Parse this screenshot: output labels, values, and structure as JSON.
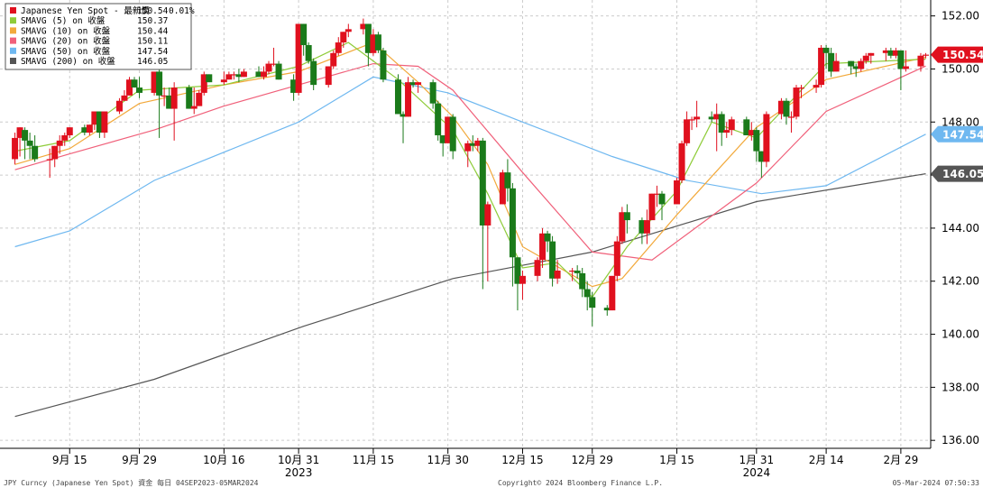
{
  "chart_data": {
    "type": "candlestick",
    "ylim": [
      135.7,
      152.6
    ],
    "yticks": [
      136,
      138,
      140,
      142,
      144,
      146,
      148,
      150,
      152
    ],
    "ytick_labels": [
      "136.00",
      "138.00",
      "140.00",
      "142.00",
      "144.00",
      "146.00",
      "148.00",
      "150.00",
      "152.00"
    ],
    "xticks": [
      {
        "date": "2023-09-15",
        "label": "9月 15"
      },
      {
        "date": "2023-09-29",
        "label": "9月 29"
      },
      {
        "date": "2023-10-16",
        "label": "10月 16"
      },
      {
        "date": "2023-10-31",
        "label": "10月 31",
        "sub": "2023"
      },
      {
        "date": "2023-11-15",
        "label": "11月 15"
      },
      {
        "date": "2023-11-30",
        "label": "11月 30"
      },
      {
        "date": "2023-12-15",
        "label": "12月 15"
      },
      {
        "date": "2023-12-29",
        "label": "12月 29"
      },
      {
        "date": "2024-01-15",
        "label": "1月 15"
      },
      {
        "date": "2024-01-31",
        "label": "1月 31",
        "sub": "2024"
      },
      {
        "date": "2024-02-14",
        "label": "2月 14"
      },
      {
        "date": "2024-02-29",
        "label": "2月 29"
      }
    ],
    "grid": true,
    "legend_position": "top-left",
    "series": [
      {
        "name": "Japanese Yen Spot - 最新價",
        "value": "150.54",
        "change": "0.01%",
        "color": "#e0101e",
        "kind": "candles"
      },
      {
        "name": "SMAVG (5)  on 收盤",
        "value": "150.37",
        "color": "#8fcc3a",
        "kind": "line"
      },
      {
        "name": "SMAVG (10)  on 收盤",
        "value": "150.44",
        "color": "#f2a93b",
        "kind": "line"
      },
      {
        "name": "SMAVG (20)  on 收盤",
        "value": "150.11",
        "color": "#f0607a",
        "kind": "line"
      },
      {
        "name": "SMAVG (50)  on 收盤",
        "value": "147.54",
        "color": "#6fb8f0",
        "kind": "line"
      },
      {
        "name": "SMAVG (200)  on 收盤",
        "value": "146.05",
        "color": "#555555",
        "kind": "line"
      }
    ],
    "candles": [
      [
        "2023-09-04",
        146.6,
        147.6,
        146.4,
        147.4
      ],
      [
        "2023-09-05",
        147.4,
        147.8,
        146.7,
        147.8
      ],
      [
        "2023-09-06",
        147.7,
        147.8,
        146.6,
        147.3
      ],
      [
        "2023-09-07",
        147.3,
        147.6,
        146.6,
        147.1
      ],
      [
        "2023-09-08",
        147.1,
        147.5,
        146.5,
        146.6
      ],
      [
        "2023-09-11",
        146.6,
        147.0,
        145.9,
        146.6
      ],
      [
        "2023-09-12",
        146.6,
        147.1,
        146.3,
        147.1
      ],
      [
        "2023-09-13",
        147.1,
        147.5,
        146.8,
        147.3
      ],
      [
        "2023-09-14",
        147.3,
        147.6,
        147.1,
        147.5
      ],
      [
        "2023-09-15",
        147.5,
        147.8,
        147.4,
        147.8
      ],
      [
        "2023-09-18",
        147.8,
        147.9,
        147.5,
        147.6
      ],
      [
        "2023-09-19",
        147.6,
        147.9,
        147.5,
        147.9
      ],
      [
        "2023-09-20",
        147.9,
        148.4,
        147.7,
        148.4
      ],
      [
        "2023-09-21",
        148.4,
        148.4,
        147.4,
        147.6
      ],
      [
        "2023-09-22",
        147.6,
        148.4,
        147.4,
        148.4
      ],
      [
        "2023-09-25",
        148.4,
        148.9,
        148.3,
        148.8
      ],
      [
        "2023-09-26",
        148.8,
        149.2,
        148.8,
        149.0
      ],
      [
        "2023-09-27",
        149.0,
        149.7,
        149.0,
        149.6
      ],
      [
        "2023-09-28",
        149.6,
        149.7,
        149.3,
        149.3
      ],
      [
        "2023-09-29",
        149.3,
        149.7,
        148.9,
        149.1
      ],
      [
        "2023-10-02",
        149.1,
        149.8,
        149.0,
        149.9
      ],
      [
        "2023-10-03",
        149.9,
        150.2,
        147.4,
        149.0
      ],
      [
        "2023-10-04",
        149.0,
        149.3,
        148.6,
        149.0
      ],
      [
        "2023-10-05",
        149.0,
        149.3,
        148.6,
        148.5
      ],
      [
        "2023-10-06",
        148.5,
        149.5,
        147.3,
        149.3
      ],
      [
        "2023-10-09",
        149.3,
        149.4,
        148.5,
        148.5
      ],
      [
        "2023-10-10",
        148.5,
        149.3,
        148.3,
        148.6
      ],
      [
        "2023-10-11",
        148.6,
        149.2,
        148.7,
        149.1
      ],
      [
        "2023-10-12",
        149.1,
        149.9,
        149.0,
        149.8
      ],
      [
        "2023-10-13",
        149.8,
        149.8,
        149.5,
        149.5
      ],
      [
        "2023-10-16",
        149.5,
        149.9,
        149.4,
        149.6
      ],
      [
        "2023-10-17",
        149.6,
        149.9,
        149.6,
        149.8
      ],
      [
        "2023-10-18",
        149.8,
        149.9,
        149.6,
        149.8
      ],
      [
        "2023-10-19",
        149.8,
        150.0,
        149.5,
        149.7
      ],
      [
        "2023-10-20",
        149.7,
        150.0,
        149.7,
        149.9
      ],
      [
        "2023-10-23",
        149.9,
        150.1,
        149.7,
        149.7
      ],
      [
        "2023-10-24",
        149.7,
        150.1,
        149.6,
        149.9
      ],
      [
        "2023-10-25",
        149.9,
        150.3,
        149.8,
        150.2
      ],
      [
        "2023-10-26",
        150.2,
        150.8,
        150.1,
        150.2
      ],
      [
        "2023-10-27",
        150.2,
        150.3,
        149.6,
        149.6
      ],
      [
        "2023-10-30",
        149.6,
        149.8,
        148.8,
        149.1
      ],
      [
        "2023-10-31",
        149.1,
        151.7,
        149.0,
        151.7
      ],
      [
        "2023-11-01",
        151.7,
        151.7,
        150.5,
        150.9
      ],
      [
        "2023-11-02",
        150.9,
        151.0,
        150.2,
        150.3
      ],
      [
        "2023-11-03",
        150.3,
        150.4,
        149.2,
        149.4
      ],
      [
        "2023-11-06",
        149.4,
        150.1,
        149.3,
        150.1
      ],
      [
        "2023-11-07",
        150.1,
        150.7,
        150.0,
        150.6
      ],
      [
        "2023-11-08",
        150.6,
        151.2,
        150.5,
        151.0
      ],
      [
        "2023-11-09",
        151.0,
        151.4,
        150.8,
        151.4
      ],
      [
        "2023-11-10",
        151.4,
        151.7,
        151.2,
        151.5
      ],
      [
        "2023-11-13",
        151.5,
        151.9,
        151.3,
        151.7
      ],
      [
        "2023-11-14",
        151.7,
        151.7,
        150.1,
        150.6
      ],
      [
        "2023-11-15",
        150.6,
        151.5,
        150.5,
        151.3
      ],
      [
        "2023-11-16",
        151.3,
        151.4,
        150.6,
        150.7
      ],
      [
        "2023-11-17",
        150.7,
        150.8,
        149.5,
        149.6
      ],
      [
        "2023-11-20",
        149.6,
        149.8,
        148.3,
        148.3
      ],
      [
        "2023-11-21",
        148.3,
        148.4,
        147.2,
        148.2
      ],
      [
        "2023-11-22",
        148.2,
        149.7,
        148.2,
        149.5
      ],
      [
        "2023-11-23",
        149.5,
        149.6,
        149.3,
        149.4
      ],
      [
        "2023-11-24",
        149.4,
        149.5,
        149.1,
        149.5
      ],
      [
        "2023-11-27",
        149.5,
        149.6,
        148.5,
        148.7
      ],
      [
        "2023-11-28",
        148.7,
        148.8,
        147.3,
        147.5
      ],
      [
        "2023-11-29",
        147.5,
        147.5,
        146.7,
        147.2
      ],
      [
        "2023-11-30",
        147.2,
        148.2,
        147.2,
        148.2
      ],
      [
        "2023-12-01",
        148.2,
        148.3,
        146.6,
        146.9
      ],
      [
        "2023-12-04",
        146.9,
        147.3,
        146.3,
        147.2
      ],
      [
        "2023-12-05",
        147.2,
        147.5,
        146.9,
        147.1
      ],
      [
        "2023-12-06",
        147.1,
        147.4,
        146.9,
        147.3
      ],
      [
        "2023-12-07",
        147.3,
        147.4,
        141.7,
        144.1
      ],
      [
        "2023-12-08",
        144.1,
        145.0,
        142.0,
        144.9
      ],
      [
        "2023-12-11",
        144.9,
        146.2,
        144.9,
        146.1
      ],
      [
        "2023-12-12",
        146.1,
        146.6,
        145.0,
        145.5
      ],
      [
        "2023-12-13",
        145.5,
        145.7,
        141.8,
        142.9
      ],
      [
        "2023-12-14",
        142.9,
        142.9,
        140.9,
        141.9
      ],
      [
        "2023-12-15",
        141.9,
        142.4,
        141.3,
        142.2
      ],
      [
        "2023-12-18",
        142.2,
        142.9,
        142.0,
        142.8
      ],
      [
        "2023-12-19",
        142.8,
        144.0,
        142.5,
        143.8
      ],
      [
        "2023-12-20",
        143.8,
        143.9,
        143.1,
        143.5
      ],
      [
        "2023-12-21",
        143.5,
        143.7,
        141.8,
        142.1
      ],
      [
        "2023-12-22",
        142.1,
        142.8,
        141.9,
        142.4
      ],
      [
        "2023-12-25",
        142.4,
        142.5,
        142.0,
        142.4
      ],
      [
        "2023-12-26",
        142.4,
        142.6,
        142.1,
        142.3
      ],
      [
        "2023-12-27",
        142.3,
        142.5,
        141.4,
        141.7
      ],
      [
        "2023-12-28",
        141.7,
        142.0,
        140.9,
        141.4
      ],
      [
        "2023-12-29",
        141.4,
        141.6,
        140.3,
        141.0
      ],
      [
        "2024-01-01",
        141.0,
        141.1,
        140.7,
        140.9
      ],
      [
        "2024-01-02",
        140.9,
        142.2,
        140.9,
        142.2
      ],
      [
        "2024-01-03",
        142.2,
        143.7,
        142.0,
        143.5
      ],
      [
        "2024-01-04",
        143.5,
        144.8,
        143.4,
        144.6
      ],
      [
        "2024-01-05",
        144.6,
        144.9,
        143.8,
        144.3
      ],
      [
        "2024-01-08",
        144.3,
        144.4,
        143.4,
        143.8
      ],
      [
        "2024-01-09",
        143.8,
        144.7,
        143.4,
        144.3
      ],
      [
        "2024-01-10",
        144.3,
        145.3,
        144.3,
        145.3
      ],
      [
        "2024-01-11",
        145.3,
        145.6,
        144.8,
        145.3
      ],
      [
        "2024-01-12",
        145.3,
        145.4,
        144.3,
        144.9
      ],
      [
        "2024-01-15",
        144.9,
        145.9,
        144.9,
        145.8
      ],
      [
        "2024-01-16",
        145.8,
        147.3,
        145.7,
        147.2
      ],
      [
        "2024-01-17",
        147.2,
        148.4,
        147.1,
        148.1
      ],
      [
        "2024-01-18",
        148.1,
        148.2,
        147.7,
        148.1
      ],
      [
        "2024-01-19",
        148.1,
        148.8,
        147.8,
        148.2
      ],
      [
        "2024-01-22",
        148.2,
        148.4,
        148.0,
        148.1
      ],
      [
        "2024-01-23",
        148.1,
        148.7,
        146.9,
        148.3
      ],
      [
        "2024-01-24",
        148.3,
        148.4,
        147.1,
        147.6
      ],
      [
        "2024-01-25",
        147.6,
        148.0,
        147.4,
        147.7
      ],
      [
        "2024-01-26",
        147.7,
        148.2,
        147.5,
        148.1
      ],
      [
        "2024-01-29",
        148.1,
        148.2,
        147.6,
        147.5
      ],
      [
        "2024-01-30",
        147.5,
        148.0,
        147.3,
        147.7
      ],
      [
        "2024-01-31",
        147.7,
        147.8,
        146.5,
        146.9
      ],
      [
        "2024-02-01",
        146.9,
        146.9,
        145.9,
        146.5
      ],
      [
        "2024-02-02",
        146.5,
        148.4,
        146.3,
        148.3
      ],
      [
        "2024-02-05",
        148.3,
        148.9,
        148.1,
        148.8
      ],
      [
        "2024-02-06",
        148.8,
        148.9,
        147.9,
        148.2
      ],
      [
        "2024-02-07",
        148.2,
        148.4,
        147.6,
        148.2
      ],
      [
        "2024-02-08",
        148.2,
        149.4,
        148.1,
        149.3
      ],
      [
        "2024-02-09",
        149.3,
        149.4,
        148.9,
        149.3
      ],
      [
        "2024-02-12",
        149.3,
        149.6,
        149.1,
        149.4
      ],
      [
        "2024-02-13",
        149.4,
        150.9,
        149.3,
        150.8
      ],
      [
        "2024-02-14",
        150.8,
        150.9,
        150.0,
        150.6
      ],
      [
        "2024-02-15",
        150.6,
        150.8,
        149.7,
        149.9
      ],
      [
        "2024-02-16",
        149.9,
        150.6,
        149.9,
        150.3
      ],
      [
        "2024-02-19",
        150.3,
        150.3,
        149.8,
        150.1
      ],
      [
        "2024-02-20",
        150.1,
        150.2,
        149.7,
        150.0
      ],
      [
        "2024-02-21",
        150.0,
        150.4,
        149.9,
        150.3
      ],
      [
        "2024-02-22",
        150.3,
        150.6,
        150.2,
        150.5
      ],
      [
        "2024-02-23",
        150.5,
        150.6,
        150.2,
        150.6
      ],
      [
        "2024-02-26",
        150.6,
        150.8,
        150.3,
        150.7
      ],
      [
        "2024-02-27",
        150.7,
        150.8,
        150.4,
        150.5
      ],
      [
        "2024-02-28",
        150.5,
        150.8,
        150.4,
        150.7
      ],
      [
        "2024-02-29",
        150.7,
        150.7,
        149.2,
        150.0
      ],
      [
        "2024-03-01",
        150.0,
        150.7,
        149.9,
        150.1
      ],
      [
        "2024-03-04",
        150.1,
        150.6,
        149.9,
        150.5
      ],
      [
        "2024-03-05",
        150.5,
        150.6,
        150.4,
        150.54
      ]
    ],
    "ma200": [
      [
        "2023-09-04",
        136.9
      ],
      [
        "2023-10-02",
        138.3
      ],
      [
        "2023-11-01",
        140.3
      ],
      [
        "2023-12-01",
        142.1
      ],
      [
        "2023-12-29",
        143.1
      ],
      [
        "2024-01-31",
        145.0
      ],
      [
        "2024-03-05",
        146.05
      ]
    ],
    "ma50": [
      [
        "2023-09-04",
        143.3
      ],
      [
        "2023-09-15",
        143.9
      ],
      [
        "2023-10-02",
        145.8
      ],
      [
        "2023-10-31",
        148.0
      ],
      [
        "2023-11-15",
        149.7
      ],
      [
        "2023-11-30",
        149.1
      ],
      [
        "2023-12-15",
        148.0
      ],
      [
        "2024-01-02",
        146.7
      ],
      [
        "2024-01-17",
        145.8
      ],
      [
        "2024-02-01",
        145.3
      ],
      [
        "2024-02-14",
        145.6
      ],
      [
        "2024-03-05",
        147.54
      ]
    ],
    "ma20": [
      [
        "2023-09-04",
        146.2
      ],
      [
        "2023-09-15",
        146.8
      ],
      [
        "2023-10-02",
        147.7
      ],
      [
        "2023-10-16",
        148.6
      ],
      [
        "2023-10-31",
        149.4
      ],
      [
        "2023-11-15",
        150.2
      ],
      [
        "2023-11-24",
        150.1
      ],
      [
        "2023-12-01",
        149.2
      ],
      [
        "2023-12-15",
        146.1
      ],
      [
        "2023-12-29",
        143.1
      ],
      [
        "2024-01-10",
        142.8
      ],
      [
        "2024-01-31",
        145.7
      ],
      [
        "2024-02-14",
        148.4
      ],
      [
        "2024-03-05",
        150.11
      ]
    ],
    "ma10": [
      [
        "2023-09-04",
        146.4
      ],
      [
        "2023-09-15",
        147.0
      ],
      [
        "2023-09-29",
        148.7
      ],
      [
        "2023-10-16",
        149.4
      ],
      [
        "2023-10-31",
        149.9
      ],
      [
        "2023-11-15",
        151.0
      ],
      [
        "2023-11-24",
        149.5
      ],
      [
        "2023-12-01",
        148.2
      ],
      [
        "2023-12-08",
        146.4
      ],
      [
        "2023-12-15",
        143.3
      ],
      [
        "2023-12-29",
        141.8
      ],
      [
        "2024-01-04",
        142.1
      ],
      [
        "2024-01-15",
        144.5
      ],
      [
        "2024-01-31",
        147.8
      ],
      [
        "2024-02-14",
        149.6
      ],
      [
        "2024-03-05",
        150.44
      ]
    ],
    "ma5": [
      [
        "2023-09-04",
        146.9
      ],
      [
        "2023-09-15",
        147.3
      ],
      [
        "2023-09-29",
        149.2
      ],
      [
        "2023-10-16",
        149.4
      ],
      [
        "2023-10-31",
        150.1
      ],
      [
        "2023-11-10",
        151.0
      ],
      [
        "2023-11-20",
        149.6
      ],
      [
        "2023-12-01",
        147.7
      ],
      [
        "2023-12-08",
        145.3
      ],
      [
        "2023-12-15",
        142.5
      ],
      [
        "2023-12-22",
        142.7
      ],
      [
        "2023-12-29",
        141.4
      ],
      [
        "2024-01-05",
        143.3
      ],
      [
        "2024-01-15",
        145.4
      ],
      [
        "2024-01-22",
        148.0
      ],
      [
        "2024-01-31",
        147.4
      ],
      [
        "2024-02-14",
        150.2
      ],
      [
        "2024-03-05",
        150.37
      ]
    ],
    "badges": [
      {
        "value": "150.54",
        "color": "#e0101e"
      },
      {
        "value": "147.54",
        "color": "#6fb8f0"
      },
      {
        "value": "146.05",
        "color": "#555555"
      }
    ]
  },
  "footer": {
    "left": "JPY Curncy (Japanese Yen Spot) 資金  每日 04SEP2023-05MAR2024",
    "center": "Copyright© 2024 Bloomberg Finance L.P.",
    "right": "05-Mar-2024 07:50:33"
  },
  "colors": {
    "up": "#e0101e",
    "down": "#1a7a1a",
    "grid": "#cccccc"
  }
}
